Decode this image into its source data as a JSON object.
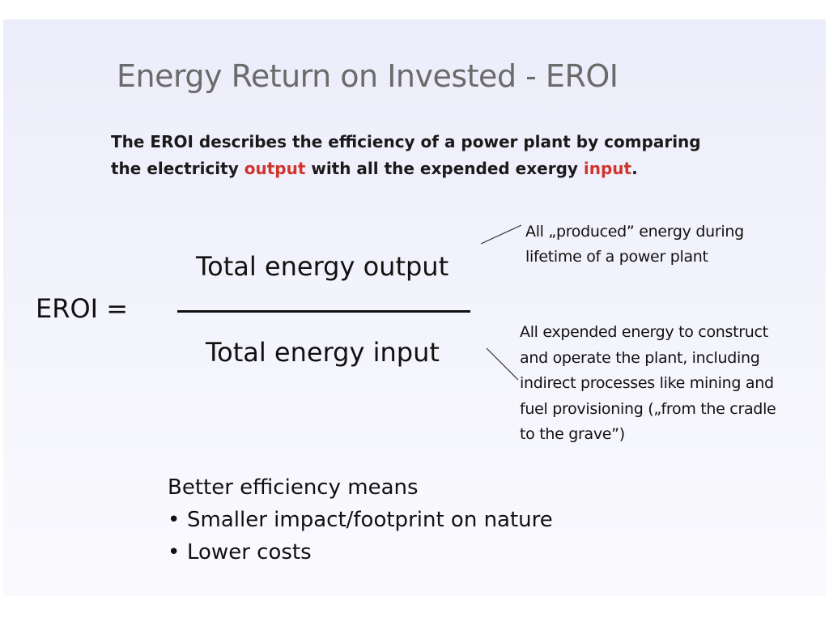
{
  "title": "Energy Return on Invested - EROI",
  "intro": {
    "line1": "The EROI describes the efficiency of a power plant by comparing",
    "line2_before": "the electricity ",
    "line2_output": "output",
    "line2_middle": " with all the expended exergy ",
    "line2_input": "input",
    "line2_after": "."
  },
  "formula": {
    "lhs": "EROI =",
    "numerator": "Total energy output",
    "denominator": "Total energy input"
  },
  "notes": {
    "output": [
      "All „produced” energy during",
      "lifetime of a power plant"
    ],
    "input": [
      "All expended energy to construct",
      "and operate the plant, including",
      "indirect processes like mining and",
      "fuel provisioning („from the cradle",
      "to the grave”)"
    ]
  },
  "benefits": {
    "heading": "Better efficiency means",
    "items": [
      "Smaller impact/footprint on nature",
      "Lower costs"
    ],
    "bullet": "•"
  },
  "colors": {
    "highlight": "#d0342c",
    "title": "#6b6b6b",
    "background_top": "#ecedfb"
  }
}
